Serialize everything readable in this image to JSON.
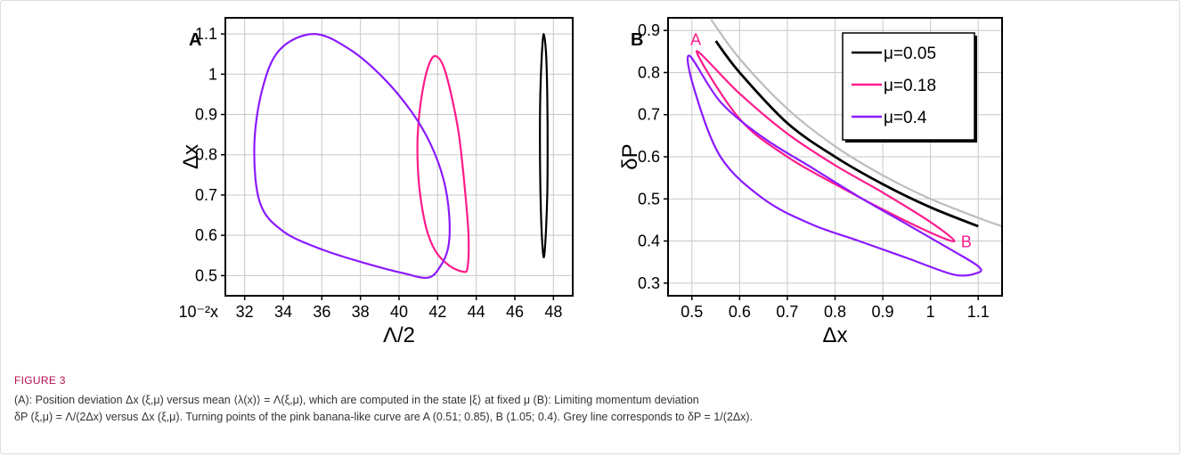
{
  "figure": {
    "label": "FIGURE 3",
    "caption_line1": "(A): Position deviation Δx (ξ,μ) versus mean ⟨λ(x)⟩ = Λ(ξ,μ), which are computed in the state |ξ⟩ at fixed μ (B): Limiting momentum deviation",
    "caption_line2": "δP (ξ,μ) = Λ/(2Δx) versus Δx (ξ,μ). Turning points of the pink banana-like curve are A (0.51; 0.85), B (1.05; 0.4). Grey line corresponds to δP = 1/(2Δx)."
  },
  "colors": {
    "mu_005": "#000000",
    "mu_018": "#ff1a8c",
    "mu_04": "#8b1aff",
    "grey_line": "#bdbdbd",
    "grid": "#c8c8c8",
    "caption_label": "#b40e4e"
  },
  "chart_data": [
    {
      "panel_label": "A",
      "type": "line",
      "xlabel": "Λ/2",
      "ylabel": "Δx",
      "x_multiplier_label": "10⁻²x",
      "xlim": [
        31,
        49
      ],
      "ylim": [
        0.45,
        1.14
      ],
      "xticks": [
        32,
        34,
        36,
        38,
        40,
        42,
        44,
        46,
        48
      ],
      "yticks": [
        0.5,
        0.6,
        0.7,
        0.8,
        0.9,
        1,
        1.1
      ],
      "xtick_labels": [
        "32",
        "34",
        "36",
        "38",
        "40",
        "42",
        "44",
        "46",
        "48"
      ],
      "ytick_labels": [
        "0.5",
        "0.6",
        "0.7",
        "0.8",
        "0.9",
        "1",
        "1.1"
      ],
      "grid": true,
      "series": [
        {
          "color_key": "mu_005",
          "closed": true,
          "x": [
            47.5,
            47.62,
            47.68,
            47.7,
            47.68,
            47.6,
            47.5,
            47.4,
            47.33,
            47.3,
            47.32,
            47.4,
            47.5
          ],
          "y": [
            1.1,
            1.05,
            0.95,
            0.82,
            0.7,
            0.6,
            0.545,
            0.6,
            0.7,
            0.82,
            0.95,
            1.05,
            1.1
          ]
        },
        {
          "color_key": "mu_018",
          "closed": true,
          "x": [
            41.9,
            42.3,
            42.7,
            43.1,
            43.4,
            43.6,
            43.55,
            43.3,
            42.6,
            41.9,
            41.4,
            41.05,
            40.95,
            41.05,
            41.3,
            41.6,
            41.9
          ],
          "y": [
            1.045,
            1.02,
            0.95,
            0.85,
            0.72,
            0.6,
            0.52,
            0.51,
            0.525,
            0.56,
            0.62,
            0.72,
            0.82,
            0.9,
            0.98,
            1.03,
            1.045
          ]
        },
        {
          "color_key": "mu_04",
          "closed": true,
          "x": [
            35.6,
            37.5,
            39.2,
            40.6,
            41.6,
            42.3,
            42.6,
            42.55,
            42.1,
            41.5,
            40.3,
            38.3,
            36.0,
            34.0,
            32.8,
            32.5,
            32.9,
            33.8,
            35.6
          ],
          "y": [
            1.1,
            1.06,
            0.99,
            0.91,
            0.83,
            0.74,
            0.65,
            0.57,
            0.52,
            0.495,
            0.505,
            0.53,
            0.565,
            0.61,
            0.68,
            0.82,
            0.96,
            1.06,
            1.1
          ]
        }
      ]
    },
    {
      "panel_label": "B",
      "type": "line",
      "xlabel": "Δx",
      "ylabel": "δP",
      "xlim": [
        0.45,
        1.15
      ],
      "ylim": [
        0.27,
        0.93
      ],
      "xticks": [
        0.5,
        0.6,
        0.7,
        0.8,
        0.9,
        1,
        1.1
      ],
      "yticks": [
        0.3,
        0.4,
        0.5,
        0.6,
        0.7,
        0.8,
        0.9
      ],
      "xtick_labels": [
        "0.5",
        "0.6",
        "0.7",
        "0.8",
        "0.9",
        "1",
        "1.1"
      ],
      "ytick_labels": [
        "0.3",
        "0.4",
        "0.5",
        "0.6",
        "0.7",
        "0.8",
        "0.9"
      ],
      "grid": true,
      "legend": {
        "placement": "top-right",
        "entries": [
          {
            "label": "μ=0.05",
            "color_key": "mu_005"
          },
          {
            "label": "μ=0.18",
            "color_key": "mu_018"
          },
          {
            "label": "μ=0.4",
            "color_key": "mu_04"
          }
        ]
      },
      "annotations": [
        {
          "text": "A",
          "x": 0.508,
          "y": 0.88,
          "color_key": "mu_018"
        },
        {
          "text": "B",
          "x": 1.075,
          "y": 0.4,
          "color_key": "mu_018"
        }
      ],
      "series": [
        {
          "color_key": "grey_line",
          "closed": false,
          "x": [
            0.54,
            0.6,
            0.7,
            0.8,
            0.9,
            1.0,
            1.1,
            1.15
          ],
          "y": [
            0.926,
            0.833,
            0.714,
            0.625,
            0.556,
            0.5,
            0.455,
            0.435
          ]
        },
        {
          "color_key": "mu_005",
          "closed": false,
          "x": [
            0.55,
            0.6,
            0.7,
            0.8,
            0.9,
            1.0,
            1.1
          ],
          "y": [
            0.875,
            0.8,
            0.68,
            0.6,
            0.535,
            0.48,
            0.435
          ]
        },
        {
          "color_key": "mu_018",
          "closed": true,
          "x": [
            0.51,
            0.6,
            0.7,
            0.8,
            0.9,
            1.0,
            1.05,
            1.0,
            0.9,
            0.8,
            0.7,
            0.6,
            0.51
          ],
          "y": [
            0.85,
            0.75,
            0.655,
            0.58,
            0.515,
            0.445,
            0.4,
            0.42,
            0.475,
            0.535,
            0.6,
            0.69,
            0.85
          ]
        },
        {
          "color_key": "mu_04",
          "closed": true,
          "x": [
            0.495,
            0.56,
            0.65,
            0.75,
            0.85,
            0.95,
            1.05,
            1.1,
            1.1,
            1.05,
            0.95,
            0.85,
            0.75,
            0.65,
            0.56,
            0.505,
            0.495
          ],
          "y": [
            0.84,
            0.73,
            0.645,
            0.575,
            0.505,
            0.44,
            0.375,
            0.34,
            0.325,
            0.32,
            0.36,
            0.4,
            0.44,
            0.5,
            0.6,
            0.76,
            0.84
          ]
        }
      ]
    }
  ]
}
